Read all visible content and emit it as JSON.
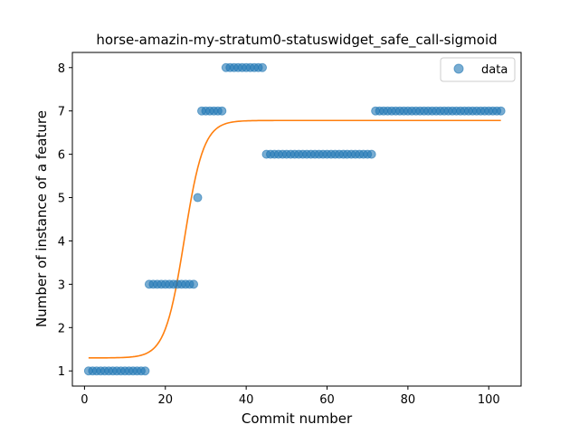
{
  "chart_data": {
    "type": "scatter",
    "title": "horse-amazin-my-stratum0-statuswidget_safe_call-sigmoid",
    "xlabel": "Commit number",
    "ylabel": "Number of instance of a feature",
    "xlim": [
      -3,
      108
    ],
    "ylim": [
      0.65,
      8.35
    ],
    "xticks": [
      0,
      20,
      40,
      60,
      80,
      100
    ],
    "yticks": [
      1,
      2,
      3,
      4,
      5,
      6,
      7,
      8
    ],
    "grid": false,
    "legend_position": "top-right",
    "series": [
      {
        "name": "data",
        "kind": "scatter",
        "color": "#1f77b4",
        "segments": [
          {
            "x_start": 1,
            "x_end": 15,
            "y": 1
          },
          {
            "x_start": 16,
            "x_end": 27,
            "y": 3
          },
          {
            "x_start": 28,
            "x_end": 28,
            "y": 5
          },
          {
            "x_start": 29,
            "x_end": 34,
            "y": 7
          },
          {
            "x_start": 35,
            "x_end": 44,
            "y": 8
          },
          {
            "x_start": 45,
            "x_end": 71,
            "y": 6
          },
          {
            "x_start": 72,
            "x_end": 103,
            "y": 7
          }
        ]
      },
      {
        "kind": "sigmoid-fit",
        "color": "#ff7f0e",
        "x_range": [
          1,
          103
        ],
        "base": 1.3,
        "top": 6.78,
        "midpoint": 24.7,
        "steepness": 0.42
      }
    ]
  }
}
